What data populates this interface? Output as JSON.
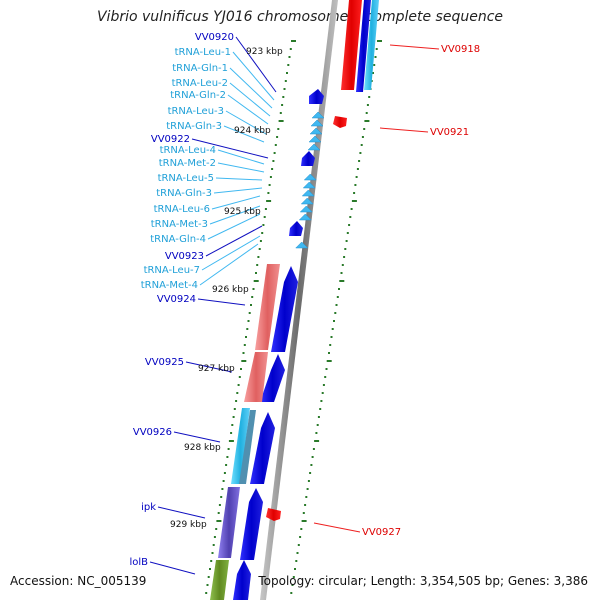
{
  "title": "Vibrio vulnificus YJ016 chromosome I, complete sequence",
  "footer": {
    "accession": "Accession: NC_005139",
    "summary": "Topology: circular; Length: 3,354,505 bp; Genes: 3,386"
  },
  "colors": {
    "cds": "#1010e0",
    "trna": "#40b8f0",
    "pseudo": "#e8e0ff",
    "reverse_gene": "#ff1010",
    "reverse_label": "#dd0000",
    "salmon_gene": "#f08080",
    "cyan_gene": "#30c8f0",
    "purple_gene": "#7060d0",
    "olive_gene": "#70a030",
    "tick": "#2a7a2a",
    "backbone": "#888888"
  },
  "kbp_labels": [
    "923 kbp",
    "924 kbp",
    "925 kbp",
    "926 kbp",
    "927 kbp",
    "928 kbp",
    "929 kbp"
  ],
  "left_labels": [
    {
      "text": "VV0920",
      "kind": "cds"
    },
    {
      "text": "tRNA-Leu-1",
      "kind": "trna"
    },
    {
      "text": "tRNA-Gln-1",
      "kind": "trna"
    },
    {
      "text": "tRNA-Leu-2",
      "kind": "trna"
    },
    {
      "text": "tRNA-Gln-2",
      "kind": "trna"
    },
    {
      "text": "tRNA-Leu-3",
      "kind": "trna"
    },
    {
      "text": "tRNA-Gln-3",
      "kind": "trna"
    },
    {
      "text": "VV0922",
      "kind": "cds"
    },
    {
      "text": "tRNA-Leu-4",
      "kind": "trna"
    },
    {
      "text": "tRNA-Met-2",
      "kind": "trna"
    },
    {
      "text": "tRNA-Leu-5",
      "kind": "trna"
    },
    {
      "text": "tRNA-Gln-3",
      "kind": "trna"
    },
    {
      "text": "tRNA-Leu-6",
      "kind": "trna"
    },
    {
      "text": "tRNA-Met-3",
      "kind": "trna"
    },
    {
      "text": "tRNA-Gln-4",
      "kind": "trna"
    },
    {
      "text": "VV0923",
      "kind": "cds"
    },
    {
      "text": "tRNA-Leu-7",
      "kind": "trna"
    },
    {
      "text": "tRNA-Met-4",
      "kind": "trna"
    },
    {
      "text": "VV0924",
      "kind": "cds"
    },
    {
      "text": "VV0925",
      "kind": "cds"
    },
    {
      "text": "VV0926",
      "kind": "cds"
    },
    {
      "text": "ipk",
      "kind": "cds"
    },
    {
      "text": "lolB",
      "kind": "cds"
    }
  ],
  "right_labels": [
    {
      "text": "VV0918"
    },
    {
      "text": "VV0921"
    },
    {
      "text": "VV0927"
    }
  ]
}
